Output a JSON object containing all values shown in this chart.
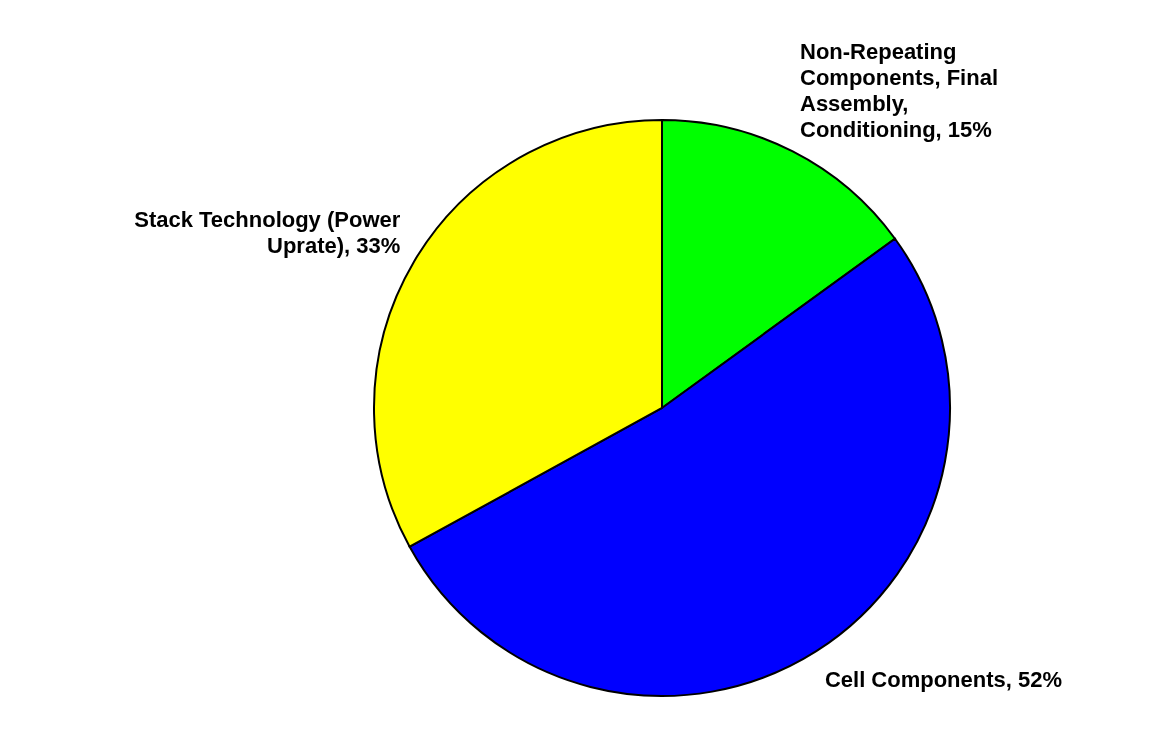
{
  "chart_data": {
    "type": "pie",
    "categories": [
      "Non-Repeating Components, Final Assembly, Conditioning",
      "Cell Components",
      "Stack Technology (Power Uprate)"
    ],
    "values": [
      15,
      52,
      33
    ],
    "colors": [
      "#00ff00",
      "#0000ff",
      "#ffff00"
    ],
    "value_labels": [
      "15%",
      "52%",
      "33%"
    ]
  }
}
